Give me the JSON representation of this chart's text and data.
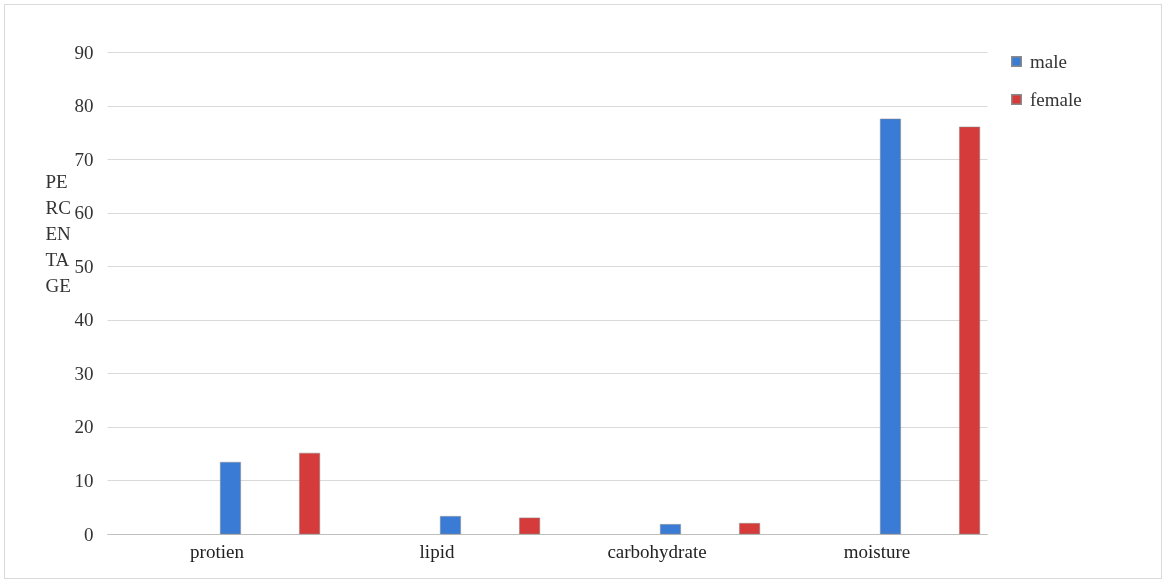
{
  "chart_data": {
    "type": "bar",
    "ylabel": "PERCENTAGE",
    "categories": [
      "protien",
      "lipid",
      "carbohydrate",
      "moisture"
    ],
    "series": [
      {
        "name": "male",
        "color": "#3a7bd5",
        "values": [
          13.4,
          3.3,
          1.8,
          77.5
        ]
      },
      {
        "name": "female",
        "color": "#d63b3b",
        "values": [
          15.1,
          3.0,
          2.0,
          76.0
        ]
      }
    ],
    "ylim": [
      0,
      90
    ],
    "yticks": [
      0,
      10,
      20,
      30,
      40,
      50,
      60,
      70,
      80,
      90
    ],
    "grid": "y",
    "legend": "right"
  }
}
